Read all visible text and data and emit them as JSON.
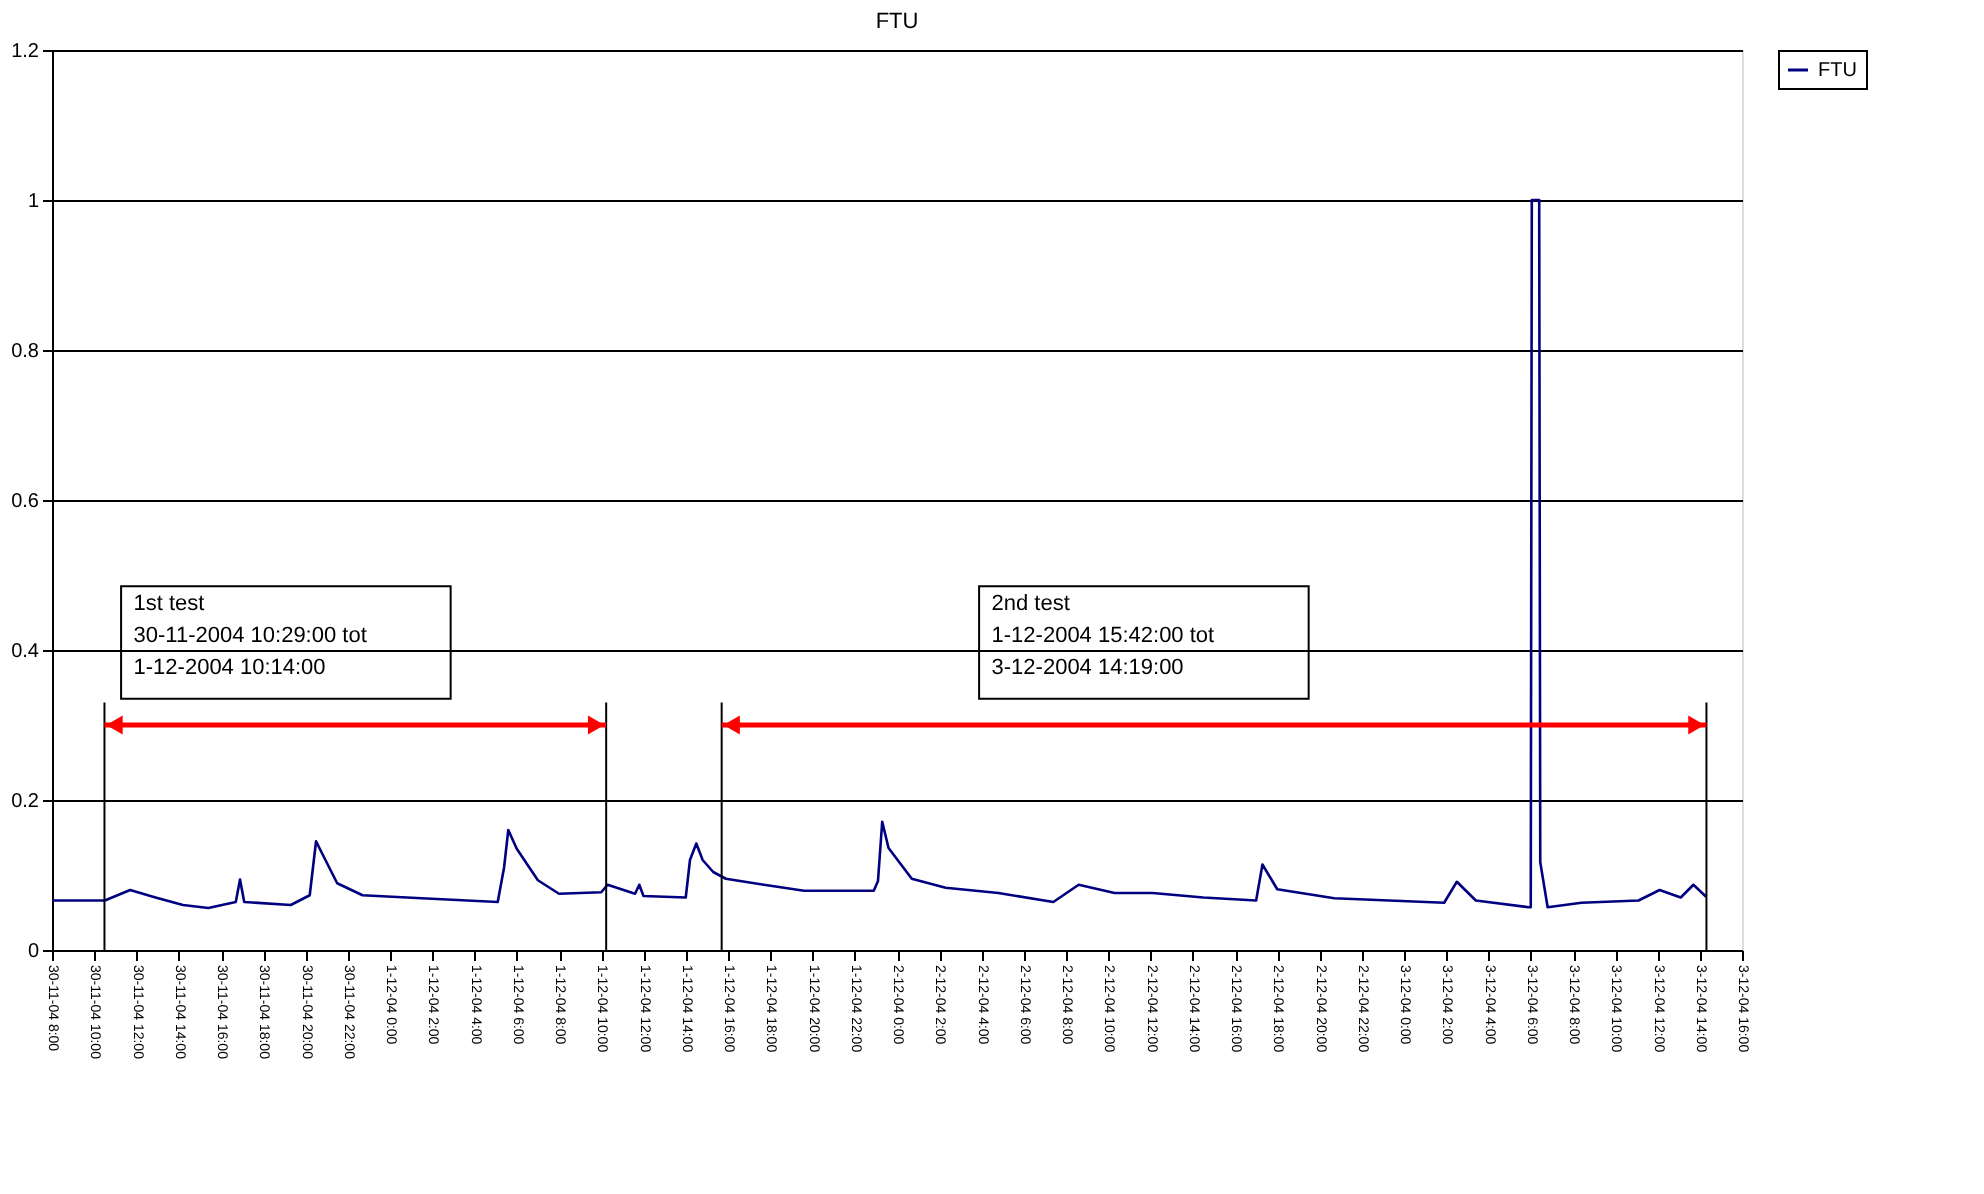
{
  "chart_data": {
    "type": "line",
    "title": "FTU",
    "xlim": [
      "2004-11-30T08:00",
      "2004-12-03T16:00"
    ],
    "xticks": [
      {
        "value": "2004-11-30T08:00",
        "label": "30-11-04 8:00"
      },
      {
        "value": "2004-11-30T10:00",
        "label": "30-11-04 10:00"
      },
      {
        "value": "2004-11-30T12:00",
        "label": "30-11-04 12:00"
      },
      {
        "value": "2004-11-30T14:00",
        "label": "30-11-04 14:00"
      },
      {
        "value": "2004-11-30T16:00",
        "label": "30-11-04 16:00"
      },
      {
        "value": "2004-11-30T18:00",
        "label": "30-11-04 18:00"
      },
      {
        "value": "2004-11-30T20:00",
        "label": "30-11-04 20:00"
      },
      {
        "value": "2004-11-30T22:00",
        "label": "30-11-04 22:00"
      },
      {
        "value": "2004-12-01T00:00",
        "label": "1-12-04 0:00"
      },
      {
        "value": "2004-12-01T02:00",
        "label": "1-12-04 2:00"
      },
      {
        "value": "2004-12-01T04:00",
        "label": "1-12-04 4:00"
      },
      {
        "value": "2004-12-01T06:00",
        "label": "1-12-04 6:00"
      },
      {
        "value": "2004-12-01T08:00",
        "label": "1-12-04 8:00"
      },
      {
        "value": "2004-12-01T10:00",
        "label": "1-12-04 10:00"
      },
      {
        "value": "2004-12-01T12:00",
        "label": "1-12-04 12:00"
      },
      {
        "value": "2004-12-01T14:00",
        "label": "1-12-04 14:00"
      },
      {
        "value": "2004-12-01T16:00",
        "label": "1-12-04 16:00"
      },
      {
        "value": "2004-12-01T18:00",
        "label": "1-12-04 18:00"
      },
      {
        "value": "2004-12-01T20:00",
        "label": "1-12-04 20:00"
      },
      {
        "value": "2004-12-01T22:00",
        "label": "1-12-04 22:00"
      },
      {
        "value": "2004-12-02T00:00",
        "label": "2-12-04 0:00"
      },
      {
        "value": "2004-12-02T02:00",
        "label": "2-12-04 2:00"
      },
      {
        "value": "2004-12-02T04:00",
        "label": "2-12-04 4:00"
      },
      {
        "value": "2004-12-02T06:00",
        "label": "2-12-04 6:00"
      },
      {
        "value": "2004-12-02T08:00",
        "label": "2-12-04 8:00"
      },
      {
        "value": "2004-12-02T10:00",
        "label": "2-12-04 10:00"
      },
      {
        "value": "2004-12-02T12:00",
        "label": "2-12-04 12:00"
      },
      {
        "value": "2004-12-02T14:00",
        "label": "2-12-04 14:00"
      },
      {
        "value": "2004-12-02T16:00",
        "label": "2-12-04 16:00"
      },
      {
        "value": "2004-12-02T18:00",
        "label": "2-12-04 18:00"
      },
      {
        "value": "2004-12-02T20:00",
        "label": "2-12-04 20:00"
      },
      {
        "value": "2004-12-02T22:00",
        "label": "2-12-04 22:00"
      },
      {
        "value": "2004-12-03T00:00",
        "label": "3-12-04 0:00"
      },
      {
        "value": "2004-12-03T02:00",
        "label": "3-12-04 2:00"
      },
      {
        "value": "2004-12-03T04:00",
        "label": "3-12-04 4:00"
      },
      {
        "value": "2004-12-03T06:00",
        "label": "3-12-04 6:00"
      },
      {
        "value": "2004-12-03T08:00",
        "label": "3-12-04 8:00"
      },
      {
        "value": "2004-12-03T10:00",
        "label": "3-12-04 10:00"
      },
      {
        "value": "2004-12-03T12:00",
        "label": "3-12-04 12:00"
      },
      {
        "value": "2004-12-03T14:00",
        "label": "3-12-04 14:00"
      },
      {
        "value": "2004-12-03T16:00",
        "label": "3-12-04 16:00"
      }
    ],
    "ylim": [
      0,
      1.2
    ],
    "yticks": [
      0,
      0.2,
      0.4,
      0.6,
      0.8,
      1,
      1.2
    ],
    "grid": "y",
    "legend": "right",
    "marker": "none",
    "line_style": "solid",
    "series": [
      {
        "name": "FTU",
        "color": "#000080",
        "x": [
          "2004-11-30T08:00",
          "2004-11-30T10:30",
          "2004-11-30T11:42",
          "2004-11-30T12:54",
          "2004-11-30T14:12",
          "2004-11-30T15:24",
          "2004-11-30T16:42",
          "2004-11-30T16:54",
          "2004-11-30T17:06",
          "2004-11-30T19:18",
          "2004-11-30T20:12",
          "2004-11-30T20:30",
          "2004-11-30T20:48",
          "2004-11-30T21:30",
          "2004-11-30T22:42",
          "2004-12-01T01:30",
          "2004-12-01T05:06",
          "2004-12-01T05:24",
          "2004-12-01T05:36",
          "2004-12-01T06:00",
          "2004-12-01T07:00",
          "2004-12-01T08:00",
          "2004-12-01T10:00",
          "2004-12-01T10:18",
          "2004-12-01T11:36",
          "2004-12-01T11:48",
          "2004-12-01T12:00",
          "2004-12-01T14:00",
          "2004-12-01T14:12",
          "2004-12-01T14:30",
          "2004-12-01T14:48",
          "2004-12-01T15:18",
          "2004-12-01T15:54",
          "2004-12-01T17:42",
          "2004-12-01T19:36",
          "2004-12-01T22:54",
          "2004-12-01T23:06",
          "2004-12-01T23:18",
          "2004-12-01T23:36",
          "2004-12-02T00:42",
          "2004-12-02T02:18",
          "2004-12-02T04:48",
          "2004-12-02T07:24",
          "2004-12-02T08:36",
          "2004-12-02T10:18",
          "2004-12-02T12:06",
          "2004-12-02T14:30",
          "2004-12-02T17:00",
          "2004-12-02T17:18",
          "2004-12-02T18:00",
          "2004-12-02T20:42",
          "2004-12-03T01:54",
          "2004-12-03T02:30",
          "2004-12-03T03:24",
          "2004-12-03T05:54",
          "2004-12-03T06:00",
          "2004-12-03T06:03",
          "2004-12-03T06:24",
          "2004-12-03T06:27",
          "2004-12-03T06:48",
          "2004-12-03T08:24",
          "2004-12-03T11:06",
          "2004-12-03T12:06",
          "2004-12-03T13:06",
          "2004-12-03T13:42",
          "2004-12-03T14:18"
        ],
        "values": [
          0.066,
          0.066,
          0.08,
          0.07,
          0.06,
          0.056,
          0.064,
          0.094,
          0.064,
          0.06,
          0.073,
          0.145,
          0.128,
          0.089,
          0.073,
          0.069,
          0.064,
          0.11,
          0.16,
          0.135,
          0.093,
          0.075,
          0.077,
          0.087,
          0.075,
          0.087,
          0.072,
          0.07,
          0.12,
          0.142,
          0.12,
          0.104,
          0.095,
          0.087,
          0.079,
          0.079,
          0.092,
          0.171,
          0.136,
          0.095,
          0.083,
          0.076,
          0.064,
          0.087,
          0.076,
          0.076,
          0.07,
          0.066,
          0.114,
          0.081,
          0.069,
          0.063,
          0.091,
          0.066,
          0.057,
          0.057,
          1.0,
          1.0,
          0.117,
          0.057,
          0.063,
          0.066,
          0.08,
          0.07,
          0.087,
          0.071
        ]
      }
    ],
    "ref_lines": [
      {
        "axis": "x",
        "value": "2004-11-30T10:29",
        "color": "#000000"
      },
      {
        "axis": "x",
        "value": "2004-12-01T10:14",
        "color": "#000000"
      },
      {
        "axis": "x",
        "value": "2004-12-01T15:42",
        "color": "#000000"
      },
      {
        "axis": "x",
        "value": "2004-12-03T14:19",
        "color": "#000000"
      }
    ],
    "annotations": [
      "1st test\n30-11-2004 10:29:00 tot\n1-12-2004   10:14:00",
      "2nd test\n1-12-2004  15:42:00 tot\n3-12-2004  14:19:00"
    ]
  }
}
